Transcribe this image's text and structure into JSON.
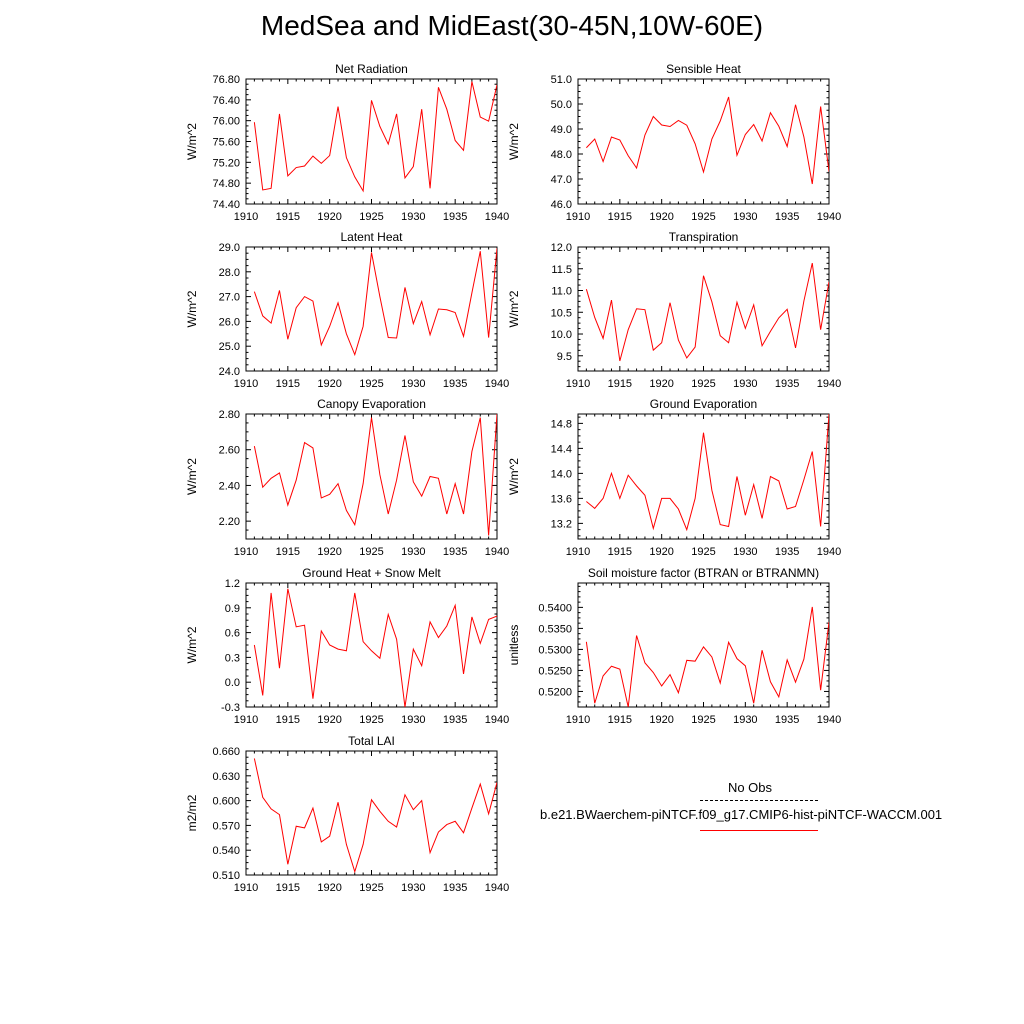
{
  "title": "MedSea and MidEast(30-45N,10W-60E)",
  "legend": {
    "obs_label": "No Obs",
    "case_label": "b.e21.BWaerchem-piNTCF.f09_g17.CMIP6-hist-piNTCF-WACCM.001",
    "case_color": "#ff0000",
    "obs_color": "#000000"
  },
  "chart_data": [
    {
      "type": "line",
      "title": "Net Radiation",
      "ylabel": "W/m^2",
      "xlim": [
        1910,
        1940
      ],
      "ylim": [
        74.4,
        76.8
      ],
      "yticks": [
        "74.40",
        "74.80",
        "75.20",
        "75.60",
        "76.00",
        "76.40",
        "76.80"
      ],
      "xticks": [
        "1910",
        "1915",
        "1920",
        "1925",
        "1930",
        "1935",
        "1940"
      ],
      "series": [
        {
          "color": "#ff0000",
          "x": [
            1911,
            1912,
            1913,
            1914,
            1915,
            1916,
            1917,
            1918,
            1919,
            1920,
            1921,
            1922,
            1923,
            1924,
            1925,
            1926,
            1927,
            1928,
            1929,
            1930,
            1931,
            1932,
            1933,
            1934,
            1935,
            1936,
            1937,
            1938,
            1939,
            1940
          ],
          "values": [
            75.97,
            74.67,
            74.7,
            76.13,
            74.94,
            75.1,
            75.13,
            75.32,
            75.18,
            75.33,
            76.27,
            75.29,
            74.92,
            74.65,
            76.39,
            75.89,
            75.55,
            76.13,
            74.9,
            75.12,
            76.22,
            74.7,
            76.64,
            76.22,
            75.62,
            75.43,
            76.75,
            76.07,
            75.99,
            76.69
          ]
        }
      ]
    },
    {
      "type": "line",
      "title": "Sensible Heat",
      "ylabel": "W/m^2",
      "xlim": [
        1910,
        1940
      ],
      "ylim": [
        46.0,
        51.0
      ],
      "yticks": [
        "46.0",
        "47.0",
        "48.0",
        "49.0",
        "50.0",
        "51.0"
      ],
      "xticks": [
        "1910",
        "1915",
        "1920",
        "1925",
        "1930",
        "1935",
        "1940"
      ],
      "series": [
        {
          "color": "#ff0000",
          "x": [
            1911,
            1912,
            1913,
            1914,
            1915,
            1916,
            1917,
            1918,
            1919,
            1920,
            1921,
            1922,
            1923,
            1924,
            1925,
            1926,
            1927,
            1928,
            1929,
            1930,
            1931,
            1932,
            1933,
            1934,
            1935,
            1936,
            1937,
            1938,
            1939,
            1940
          ],
          "values": [
            48.25,
            48.6,
            47.7,
            48.68,
            48.56,
            47.93,
            47.44,
            48.76,
            49.5,
            49.16,
            49.1,
            49.34,
            49.15,
            48.41,
            47.28,
            48.6,
            49.32,
            50.28,
            47.95,
            48.78,
            49.18,
            48.52,
            49.65,
            49.11,
            48.3,
            49.97,
            48.68,
            46.8,
            49.9,
            47.3
          ]
        }
      ]
    },
    {
      "type": "line",
      "title": "Latent Heat",
      "ylabel": "W/m^2",
      "xlim": [
        1910,
        1940
      ],
      "ylim": [
        24.0,
        29.0
      ],
      "yticks": [
        "24.0",
        "25.0",
        "26.0",
        "27.0",
        "28.0",
        "29.0"
      ],
      "xticks": [
        "1910",
        "1915",
        "1920",
        "1925",
        "1930",
        "1935",
        "1940"
      ],
      "series": [
        {
          "color": "#ff0000",
          "x": [
            1911,
            1912,
            1913,
            1914,
            1915,
            1916,
            1917,
            1918,
            1919,
            1920,
            1921,
            1922,
            1923,
            1924,
            1925,
            1926,
            1927,
            1928,
            1929,
            1930,
            1931,
            1932,
            1933,
            1934,
            1935,
            1936,
            1937,
            1938,
            1939,
            1940
          ],
          "values": [
            27.2,
            26.22,
            25.93,
            27.25,
            25.28,
            26.55,
            27.0,
            26.82,
            25.05,
            25.8,
            26.75,
            25.5,
            24.66,
            25.8,
            28.78,
            27.0,
            25.35,
            25.33,
            27.37,
            25.91,
            26.8,
            25.46,
            26.5,
            26.47,
            26.36,
            25.4,
            27.15,
            28.83,
            25.35,
            28.95
          ]
        }
      ]
    },
    {
      "type": "line",
      "title": "Transpiration",
      "ylabel": "W/m^2",
      "xlim": [
        1910,
        1940
      ],
      "ylim": [
        9.15,
        12.0
      ],
      "yticks": [
        "9.5",
        "10.0",
        "10.5",
        "11.0",
        "11.5",
        "12.0"
      ],
      "xticks": [
        "1910",
        "1915",
        "1920",
        "1925",
        "1930",
        "1935",
        "1940"
      ],
      "series": [
        {
          "color": "#ff0000",
          "x": [
            1911,
            1912,
            1913,
            1914,
            1915,
            1916,
            1917,
            1918,
            1919,
            1920,
            1921,
            1922,
            1923,
            1924,
            1925,
            1926,
            1927,
            1928,
            1929,
            1930,
            1931,
            1932,
            1933,
            1934,
            1935,
            1936,
            1937,
            1938,
            1939,
            1940
          ],
          "values": [
            11.03,
            10.38,
            9.9,
            10.78,
            9.38,
            10.1,
            10.58,
            10.56,
            9.63,
            9.8,
            10.72,
            9.86,
            9.45,
            9.7,
            11.34,
            10.74,
            9.96,
            9.8,
            10.73,
            10.13,
            10.67,
            9.73,
            10.06,
            10.37,
            10.57,
            9.68,
            10.76,
            11.63,
            10.1,
            11.2
          ]
        }
      ]
    },
    {
      "type": "line",
      "title": "Canopy Evaporation",
      "ylabel": "W/m^2",
      "xlim": [
        1910,
        1940
      ],
      "ylim": [
        2.1,
        2.8
      ],
      "yticks": [
        "2.20",
        "2.40",
        "2.60",
        "2.80"
      ],
      "xticks": [
        "1910",
        "1915",
        "1920",
        "1925",
        "1930",
        "1935",
        "1940"
      ],
      "series": [
        {
          "color": "#ff0000",
          "x": [
            1911,
            1912,
            1913,
            1914,
            1915,
            1916,
            1917,
            1918,
            1919,
            1920,
            1921,
            1922,
            1923,
            1924,
            1925,
            1926,
            1927,
            1928,
            1929,
            1930,
            1931,
            1932,
            1933,
            1934,
            1935,
            1936,
            1937,
            1938,
            1939,
            1940
          ],
          "values": [
            2.62,
            2.39,
            2.44,
            2.47,
            2.29,
            2.43,
            2.64,
            2.61,
            2.33,
            2.35,
            2.41,
            2.26,
            2.18,
            2.41,
            2.78,
            2.46,
            2.24,
            2.43,
            2.68,
            2.42,
            2.34,
            2.45,
            2.44,
            2.24,
            2.41,
            2.24,
            2.59,
            2.78,
            2.12,
            2.8
          ]
        }
      ]
    },
    {
      "type": "line",
      "title": "Ground Evaporation",
      "ylabel": "W/m^2",
      "xlim": [
        1910,
        1940
      ],
      "ylim": [
        12.95,
        14.95
      ],
      "yticks": [
        "13.2",
        "13.6",
        "14.0",
        "14.4",
        "14.8"
      ],
      "xticks": [
        "1910",
        "1915",
        "1920",
        "1925",
        "1930",
        "1935",
        "1940"
      ],
      "series": [
        {
          "color": "#ff0000",
          "x": [
            1911,
            1912,
            1913,
            1914,
            1915,
            1916,
            1917,
            1918,
            1919,
            1920,
            1921,
            1922,
            1923,
            1924,
            1925,
            1926,
            1927,
            1928,
            1929,
            1930,
            1931,
            1932,
            1933,
            1934,
            1935,
            1936,
            1937,
            1938,
            1939,
            1940
          ],
          "values": [
            13.55,
            13.44,
            13.6,
            14.0,
            13.6,
            13.97,
            13.8,
            13.65,
            13.12,
            13.6,
            13.6,
            13.43,
            13.1,
            13.6,
            14.65,
            13.73,
            13.18,
            13.15,
            13.95,
            13.33,
            13.82,
            13.28,
            13.95,
            13.88,
            13.43,
            13.47,
            13.9,
            14.35,
            13.15,
            14.95
          ]
        }
      ]
    },
    {
      "type": "line",
      "title": "Ground Heat + Snow Melt",
      "ylabel": "W/m^2",
      "xlim": [
        1910,
        1940
      ],
      "ylim": [
        -0.3,
        1.2
      ],
      "yticks": [
        "-0.3",
        "0.0",
        "0.3",
        "0.6",
        "0.9",
        "1.2"
      ],
      "xticks": [
        "1910",
        "1915",
        "1920",
        "1925",
        "1930",
        "1935",
        "1940"
      ],
      "series": [
        {
          "color": "#ff0000",
          "x": [
            1911,
            1912,
            1913,
            1914,
            1915,
            1916,
            1917,
            1918,
            1919,
            1920,
            1921,
            1922,
            1923,
            1924,
            1925,
            1926,
            1927,
            1928,
            1929,
            1930,
            1931,
            1932,
            1933,
            1934,
            1935,
            1936,
            1937,
            1938,
            1939,
            1940
          ],
          "values": [
            0.45,
            -0.16,
            1.08,
            0.17,
            1.13,
            0.67,
            0.69,
            -0.2,
            0.62,
            0.45,
            0.4,
            0.38,
            1.08,
            0.49,
            0.38,
            0.29,
            0.82,
            0.52,
            -0.3,
            0.4,
            0.2,
            0.73,
            0.54,
            0.68,
            0.93,
            0.1,
            0.79,
            0.47,
            0.76,
            0.8
          ]
        }
      ]
    },
    {
      "type": "line",
      "title": "Soil moisture factor (BTRAN or BTRANMN)",
      "ylabel": "unitless",
      "xlim": [
        1910,
        1940
      ],
      "ylim": [
        0.5163,
        0.5458
      ],
      "yticks": [
        "0.5200",
        "0.5250",
        "0.5300",
        "0.5350",
        "0.5400"
      ],
      "xticks": [
        "1910",
        "1915",
        "1920",
        "1925",
        "1930",
        "1935",
        "1940"
      ],
      "series": [
        {
          "color": "#ff0000",
          "x": [
            1911,
            1912,
            1913,
            1914,
            1915,
            1916,
            1917,
            1918,
            1919,
            1920,
            1921,
            1922,
            1923,
            1924,
            1925,
            1926,
            1927,
            1928,
            1929,
            1930,
            1931,
            1932,
            1933,
            1934,
            1935,
            1936,
            1937,
            1938,
            1939,
            1940
          ],
          "values": [
            0.5318,
            0.5172,
            0.5237,
            0.526,
            0.5253,
            0.5163,
            0.5333,
            0.5268,
            0.5245,
            0.5213,
            0.524,
            0.5197,
            0.5274,
            0.5272,
            0.5306,
            0.5282,
            0.522,
            0.5317,
            0.5278,
            0.5261,
            0.5172,
            0.5298,
            0.5223,
            0.5187,
            0.5275,
            0.5222,
            0.5277,
            0.5401,
            0.5203,
            0.5365
          ]
        }
      ]
    },
    {
      "type": "line",
      "title": "Total LAI",
      "ylabel": "m2/m2",
      "xlim": [
        1910,
        1940
      ],
      "ylim": [
        0.51,
        0.66
      ],
      "yticks": [
        "0.510",
        "0.540",
        "0.570",
        "0.600",
        "0.630",
        "0.660"
      ],
      "xticks": [
        "1910",
        "1915",
        "1920",
        "1925",
        "1930",
        "1935",
        "1940"
      ],
      "series": [
        {
          "color": "#ff0000",
          "x": [
            1911,
            1912,
            1913,
            1914,
            1915,
            1916,
            1917,
            1918,
            1919,
            1920,
            1921,
            1922,
            1923,
            1924,
            1925,
            1926,
            1927,
            1928,
            1929,
            1930,
            1931,
            1932,
            1933,
            1934,
            1935,
            1936,
            1937,
            1938,
            1939,
            1940
          ],
          "values": [
            0.651,
            0.604,
            0.59,
            0.583,
            0.523,
            0.569,
            0.567,
            0.591,
            0.55,
            0.557,
            0.598,
            0.547,
            0.514,
            0.547,
            0.601,
            0.587,
            0.575,
            0.568,
            0.607,
            0.589,
            0.6,
            0.537,
            0.562,
            0.571,
            0.575,
            0.561,
            0.591,
            0.62,
            0.584,
            0.622
          ]
        }
      ]
    }
  ]
}
